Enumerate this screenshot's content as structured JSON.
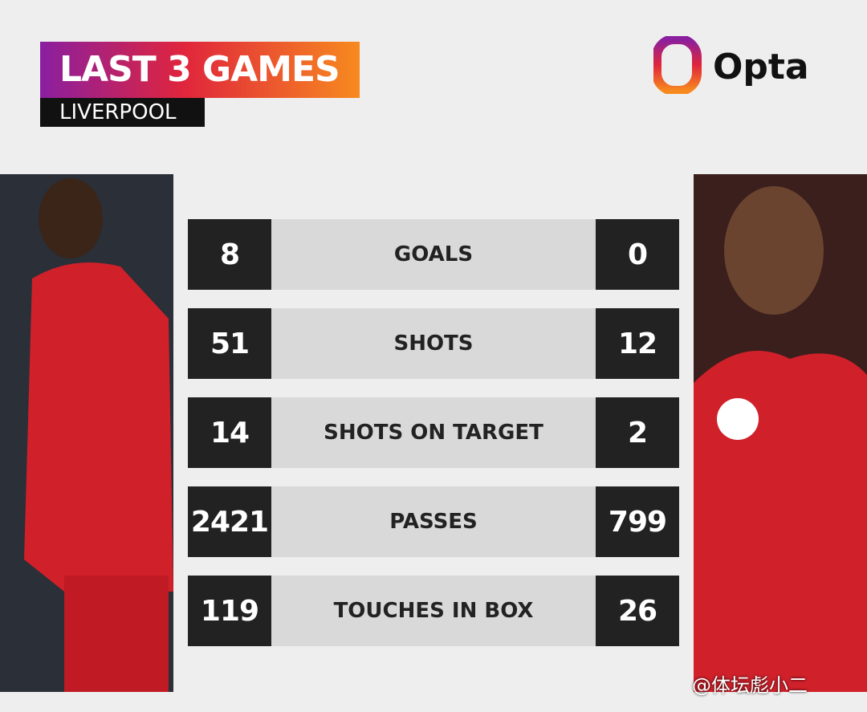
{
  "header": {
    "title": "LAST 3 GAMES",
    "subtitle": "LIVERPOOL",
    "brand": "Opta"
  },
  "table": {
    "rows": [
      [
        8,
        "GOALS",
        0
      ],
      [
        51,
        "SHOTS",
        12
      ],
      [
        14,
        "SHOTS ON TARGET",
        2
      ],
      [
        2421,
        "PASSES",
        799
      ],
      [
        119,
        "TOUCHES IN BOX",
        26
      ]
    ]
  },
  "watermark": "@体坛彪小二"
}
